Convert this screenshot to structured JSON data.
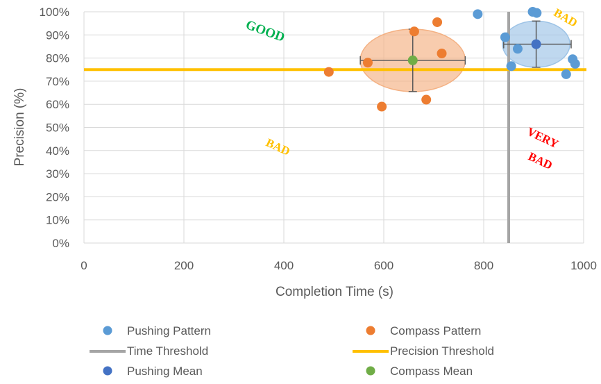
{
  "chart_data": {
    "type": "scatter",
    "xlabel": "Completion Time (s)",
    "ylabel": "Precision (%)",
    "xlim": [
      0,
      1000
    ],
    "ylim": [
      0,
      100
    ],
    "x_ticks": [
      "0",
      "200",
      "400",
      "600",
      "800",
      "1000"
    ],
    "y_ticks": [
      "0%",
      "10%",
      "20%",
      "30%",
      "40%",
      "50%",
      "60%",
      "70%",
      "80%",
      "90%",
      "100%"
    ],
    "grid": "on",
    "legend_position": "bottom",
    "series": [
      {
        "name": "Pushing Pattern",
        "kind": "points",
        "color": "#5B9BD5",
        "points": [
          [
            788,
            99
          ],
          [
            898,
            100
          ],
          [
            906,
            99.5
          ],
          [
            843,
            89
          ],
          [
            868,
            84
          ],
          [
            855,
            76.5
          ],
          [
            965,
            73
          ],
          [
            978,
            79.5
          ],
          [
            983,
            77.5
          ]
        ]
      },
      {
        "name": "Compass Pattern",
        "kind": "points",
        "color": "#ED7D31",
        "points": [
          [
            490,
            74
          ],
          [
            568,
            78
          ],
          [
            596,
            59
          ],
          [
            661,
            91.5
          ],
          [
            685,
            62
          ],
          [
            707,
            95.5
          ],
          [
            716,
            82
          ]
        ]
      },
      {
        "name": "Time Threshold",
        "kind": "vline",
        "color": "#A5A5A5",
        "x": 850
      },
      {
        "name": "Precision Threshold",
        "kind": "hline",
        "color": "#FFC000",
        "y": 75
      },
      {
        "name": "Pushing Mean",
        "kind": "mean",
        "color": "#4472C4",
        "x": 905,
        "y": 86,
        "x_error": [
          840,
          975
        ],
        "y_error": [
          76,
          96
        ],
        "ellipse_color": "#9DC3E6"
      },
      {
        "name": "Compass Mean",
        "kind": "mean",
        "color": "#70AD47",
        "x": 658,
        "y": 79,
        "x_error": [
          553,
          763
        ],
        "y_error": [
          65.5,
          92.5
        ],
        "ellipse_color": "#F4B183"
      }
    ],
    "annotations": [
      {
        "text": "GOOD",
        "x": 360,
        "y": 90,
        "color": "#00B050",
        "rotate": 20,
        "size": 19
      },
      {
        "text": "BAD",
        "x": 960,
        "y": 96,
        "color": "#FFC000",
        "rotate": 30,
        "size": 17
      },
      {
        "text": "BAD",
        "x": 385,
        "y": 40,
        "color": "#FFC000",
        "rotate": 25,
        "size": 17
      },
      {
        "text": "VERY",
        "x": 915,
        "y": 44,
        "color": "#FF0000",
        "rotate": 25,
        "size": 17
      },
      {
        "text": "BAD",
        "x": 910,
        "y": 34,
        "color": "#FF0000",
        "rotate": 25,
        "size": 17
      }
    ]
  }
}
